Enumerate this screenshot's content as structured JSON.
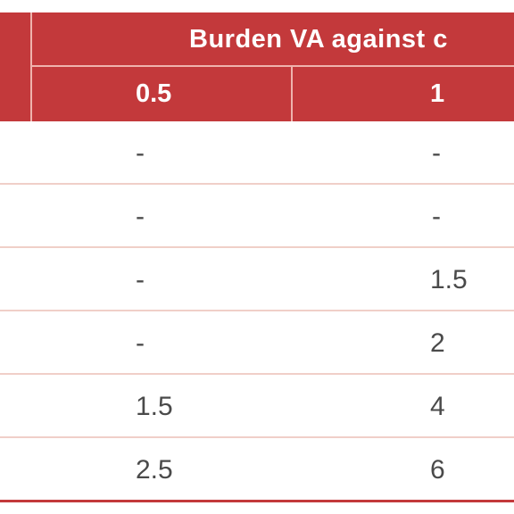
{
  "header": {
    "group_label": "Burden VA against c",
    "columns": [
      "0.5",
      "1"
    ]
  },
  "rows": [
    [
      "-",
      "-"
    ],
    [
      "-",
      "-"
    ],
    [
      "-",
      "1.5"
    ],
    [
      "-",
      "2"
    ],
    [
      "1.5",
      "4"
    ],
    [
      "2.5",
      "6"
    ]
  ],
  "colors": {
    "header_bg": "#c3393b",
    "header_text": "#ffffff",
    "row_divider": "#f0cfc8",
    "body_text": "#4a4a4a"
  }
}
